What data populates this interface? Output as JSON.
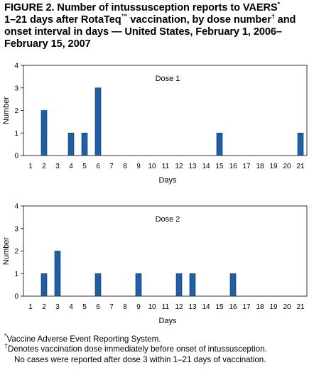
{
  "figure": {
    "title_line1_a": "FIGURE 2. Number of intussusception reports to VAERS",
    "title_star": "*",
    "title_line2_a": "1–21 days after RotaTeq",
    "title_tm": "™",
    "title_line2_b": " vaccination, by dose number",
    "title_dagger": "†",
    "title_line2_c": " and",
    "title_line3": "onset interval in days — United States, February 1, 2006–",
    "title_line4": "February 15, 2007"
  },
  "colors": {
    "bar": "#1f5fa8",
    "bar_edge": "#0a2d5c",
    "axis": "#000000"
  },
  "chart_data": [
    {
      "type": "bar",
      "panel_label": "Dose 1",
      "xlabel": "Days",
      "ylabel": "Number",
      "ylim": [
        0,
        4
      ],
      "yticks": [
        0,
        1,
        2,
        3,
        4
      ],
      "categories": [
        "1",
        "2",
        "3",
        "4",
        "5",
        "6",
        "7",
        "8",
        "9",
        "10",
        "11",
        "12",
        "13",
        "14",
        "15",
        "16",
        "17",
        "18",
        "19",
        "20",
        "21"
      ],
      "values": [
        0,
        2,
        0,
        1,
        1,
        3,
        0,
        0,
        0,
        0,
        0,
        0,
        0,
        0,
        1,
        0,
        0,
        0,
        0,
        0,
        1
      ]
    },
    {
      "type": "bar",
      "panel_label": "Dose 2",
      "xlabel": "Days",
      "ylabel": "Number",
      "ylim": [
        0,
        4
      ],
      "yticks": [
        0,
        1,
        2,
        3,
        4
      ],
      "categories": [
        "1",
        "2",
        "3",
        "4",
        "5",
        "6",
        "7",
        "8",
        "9",
        "10",
        "11",
        "12",
        "13",
        "14",
        "15",
        "16",
        "17",
        "18",
        "19",
        "20",
        "21"
      ],
      "values": [
        0,
        1,
        2,
        0,
        0,
        1,
        0,
        0,
        1,
        0,
        0,
        1,
        1,
        0,
        0,
        1,
        0,
        0,
        0,
        0,
        0
      ]
    }
  ],
  "footnotes": {
    "star_mark": "*",
    "star_text": "Vaccine Adverse Event Reporting System.",
    "dagger_mark": "†",
    "dagger_text": "Denotes vaccination dose immediately before onset of intussusception.",
    "note": "No cases were reported after dose 3 within 1–21 days of vaccination."
  }
}
